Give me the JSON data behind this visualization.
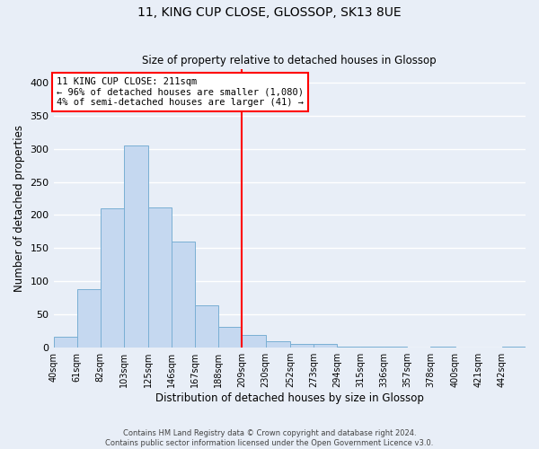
{
  "title": "11, KING CUP CLOSE, GLOSSOP, SK13 8UE",
  "subtitle": "Size of property relative to detached houses in Glossop",
  "xlabel": "Distribution of detached houses by size in Glossop",
  "ylabel": "Number of detached properties",
  "bar_color": "#c5d8f0",
  "bar_edge_color": "#7aafd4",
  "bg_color": "#e8eef7",
  "grid_color": "#ffffff",
  "vline_x": 209,
  "vline_color": "red",
  "annotation_title": "11 KING CUP CLOSE: 211sqm",
  "annotation_line1": "← 96% of detached houses are smaller (1,080)",
  "annotation_line2": "4% of semi-detached houses are larger (41) →",
  "annotation_box_color": "red",
  "bin_edges": [
    40,
    61,
    82,
    103,
    125,
    146,
    167,
    188,
    209,
    230,
    252,
    273,
    294,
    315,
    336,
    357,
    378,
    400,
    421,
    442,
    463
  ],
  "bar_heights": [
    16,
    88,
    210,
    305,
    212,
    160,
    64,
    31,
    19,
    10,
    6,
    5,
    1,
    1,
    1,
    0,
    1,
    0,
    0,
    2
  ],
  "ylim": [
    0,
    420
  ],
  "yticks": [
    0,
    50,
    100,
    150,
    200,
    250,
    300,
    350,
    400
  ],
  "footer_line1": "Contains HM Land Registry data © Crown copyright and database right 2024.",
  "footer_line2": "Contains public sector information licensed under the Open Government Licence v3.0."
}
